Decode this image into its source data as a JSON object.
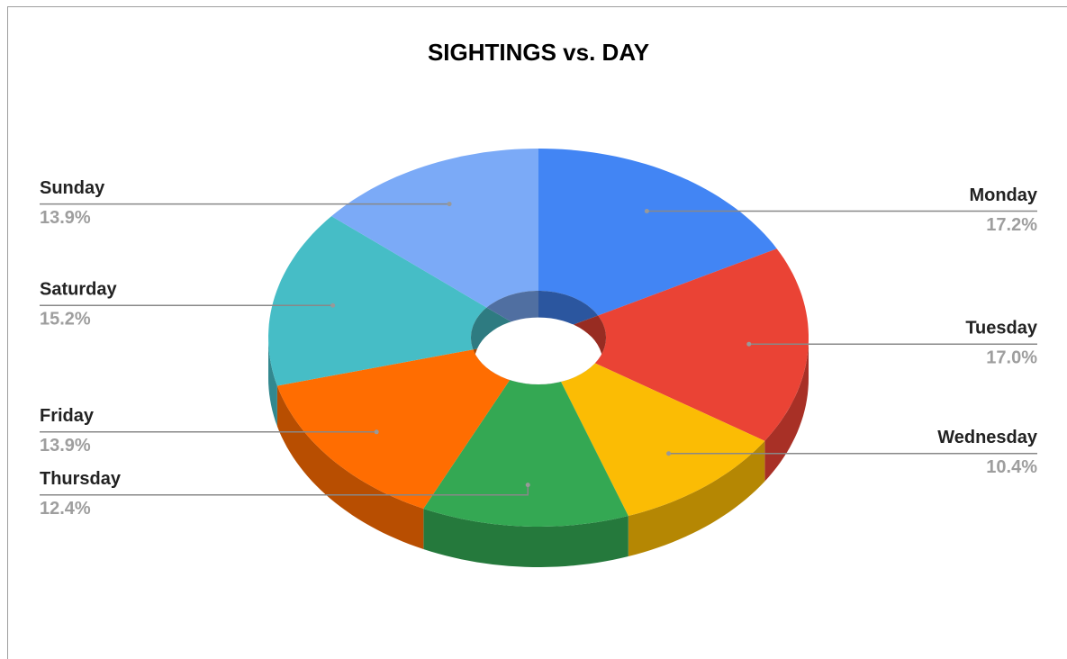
{
  "chart_data": {
    "type": "pie",
    "title": "SIGHTINGS vs. DAY",
    "categories": [
      "Monday",
      "Tuesday",
      "Wednesday",
      "Thursday",
      "Friday",
      "Saturday",
      "Sunday"
    ],
    "values": [
      17.2,
      17.0,
      10.4,
      12.4,
      13.9,
      15.2,
      13.9
    ],
    "value_labels": [
      "17.2%",
      "17.0%",
      "10.4%",
      "12.4%",
      "13.9%",
      "15.2%",
      "13.9%"
    ],
    "colors": [
      "#4285f4",
      "#ea4335",
      "#fbbc04",
      "#34a853",
      "#ff6d01",
      "#46bdc6",
      "#7baaf7"
    ],
    "donut": true,
    "three_d": true
  }
}
